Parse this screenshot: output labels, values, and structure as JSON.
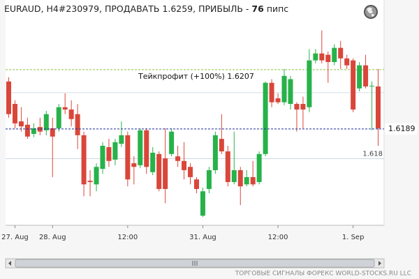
{
  "chart_data": {
    "type": "candlestick",
    "title": "EURAUD, H4#230979, ПРОДАВАТЬ 1.6259, ПРИБЫЛЬ -",
    "profit": 76,
    "profit_unit": "пипс",
    "footer": "ТОРГОВЫЕ СИГНАЛЫ ФОРЕКС WORLD-STOCKS.RU LLC",
    "up_color": "#27b24a",
    "down_color": "#d9463a",
    "categories": [
      null,
      "27. Aug",
      null,
      null,
      null,
      null,
      null,
      "28. Aug",
      null,
      null,
      null,
      null,
      null,
      null,
      null,
      null,
      null,
      null,
      null,
      "12:00",
      null,
      null,
      null,
      null,
      null,
      null,
      null,
      null,
      null,
      null,
      null,
      "31. Aug",
      null,
      null,
      null,
      null,
      null,
      null,
      null,
      null,
      null,
      null,
      null,
      "12:00",
      null,
      null,
      null,
      null,
      null,
      null,
      null,
      null,
      null,
      null,
      null,
      "1. Sep",
      null,
      null,
      null,
      null
    ],
    "open": [
      1.62034,
      1.61966,
      1.61913,
      1.61903,
      1.61875,
      1.61896,
      1.61886,
      1.61892,
      1.61892,
      1.61956,
      1.61949,
      1.61935,
      1.61871,
      1.61733,
      1.61722,
      1.61769,
      1.61835,
      1.61797,
      1.61845,
      1.61871,
      1.61786,
      1.6178,
      1.61886,
      1.61759,
      1.61814,
      1.61801,
      1.61814,
      1.61807,
      1.61793,
      1.61775,
      1.61737,
      1.61627,
      1.61708,
      1.61765,
      1.6186,
      1.61822,
      1.61729,
      1.61765,
      1.61722,
      1.61744,
      1.61729,
      1.61814,
      1.6203,
      1.61983,
      1.61971,
      1.61966,
      1.61966,
      1.61966,
      1.61956,
      1.62098,
      1.62119,
      1.62115,
      1.62093,
      1.62136,
      1.62104,
      1.62098,
      1.62013,
      1.62083,
      1.62019,
      1.62019
    ],
    "high": [
      1.62047,
      1.61977,
      1.61956,
      1.61924,
      1.61907,
      1.61924,
      1.61945,
      1.61924,
      1.61966,
      1.61998,
      1.61977,
      1.61966,
      1.61882,
      1.61765,
      1.61786,
      1.6185,
      1.6186,
      1.6186,
      1.61913,
      1.61882,
      1.61807,
      1.61892,
      1.61892,
      1.61835,
      1.61822,
      1.61892,
      1.61892,
      1.61839,
      1.6185,
      1.61786,
      1.61744,
      1.61712,
      1.61775,
      1.61882,
      1.61935,
      1.61839,
      1.61882,
      1.61775,
      1.61765,
      1.61793,
      1.61822,
      1.62034,
      1.62041,
      1.61998,
      1.62072,
      1.62051,
      1.61971,
      1.61988,
      1.62132,
      1.62132,
      1.62189,
      1.62125,
      1.62147,
      1.62157,
      1.62115,
      1.62104,
      1.62093,
      1.62115,
      1.62034,
      1.62072
    ],
    "low": [
      1.61924,
      1.61892,
      1.61882,
      1.6186,
      1.61865,
      1.61871,
      1.61871,
      1.61744,
      1.61882,
      1.61935,
      1.61898,
      1.61829,
      1.61686,
      1.61686,
      1.61701,
      1.61754,
      1.61775,
      1.6178,
      1.61835,
      1.61716,
      1.61722,
      1.61771,
      1.61754,
      1.6175,
      1.61701,
      1.61665,
      1.61807,
      1.61775,
      1.61737,
      1.61722,
      1.61695,
      1.61623,
      1.61695,
      1.61754,
      1.61814,
      1.61716,
      1.61722,
      1.61659,
      1.61716,
      1.61716,
      1.61722,
      1.61807,
      1.61956,
      1.61966,
      1.61962,
      1.61949,
      1.61882,
      1.61892,
      1.61941,
      1.62089,
      1.62089,
      1.6203,
      1.62083,
      1.62072,
      1.62072,
      1.61941,
      1.62004,
      1.62013,
      1.61886,
      1.61839
    ],
    "close": [
      1.61935,
      1.61907,
      1.61898,
      1.61867,
      1.61892,
      1.61882,
      1.61935,
      1.61867,
      1.61956,
      1.61949,
      1.6192,
      1.61871,
      1.61722,
      1.61729,
      1.61775,
      1.61839,
      1.61793,
      1.6185,
      1.61871,
      1.61737,
      1.61775,
      1.61886,
      1.61775,
      1.61818,
      1.61708,
      1.61708,
      1.61882,
      1.61793,
      1.61765,
      1.61744,
      1.61708,
      1.61701,
      1.61765,
      1.61871,
      1.61822,
      1.61729,
      1.61765,
      1.61716,
      1.61744,
      1.61722,
      1.61814,
      1.6203,
      1.61971,
      1.61971,
      1.62051,
      1.62041,
      1.61949,
      1.61949,
      1.62098,
      1.62119,
      1.62098,
      1.62093,
      1.62136,
      1.62104,
      1.62083,
      1.61949,
      1.62083,
      1.62019,
      1.62021,
      1.61892
    ],
    "ylim": [
      1.616,
      1.6226
    ],
    "yticks": [
      1.618
    ],
    "gridlines": [
      1.618,
      1.62
    ],
    "take_profit": {
      "label": "Тейкпрофит (+100%) 1.6207",
      "value": 1.6207,
      "color": "#8cc43c"
    },
    "price_line": {
      "value": 1.6189,
      "color": "#1a2a9a"
    }
  }
}
